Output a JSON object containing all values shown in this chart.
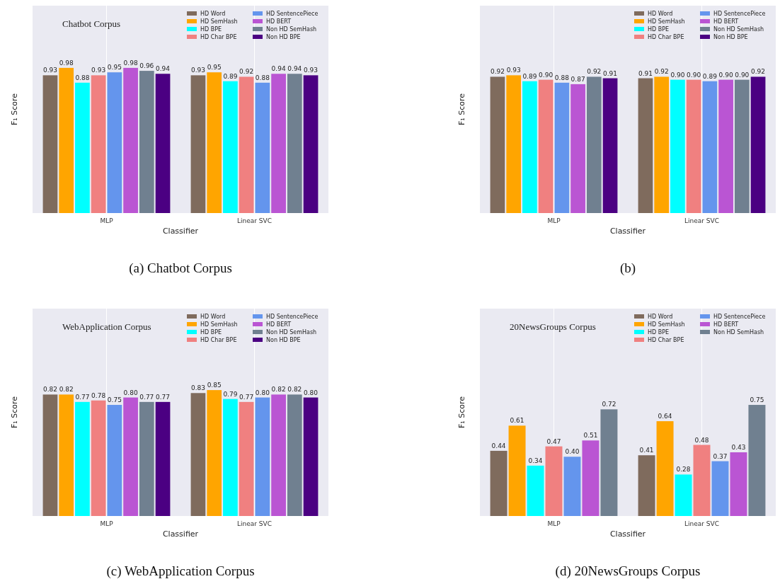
{
  "chart_data": [
    {
      "type": "bar",
      "title": "Chatbot Corpus",
      "xlabel": "Classifier",
      "ylabel": "F₁ Score",
      "categories": [
        "MLP",
        "Linear SVC"
      ],
      "ylim": [
        0,
        1.4
      ],
      "tick_labels": "x",
      "grid": "x",
      "legend": "top right",
      "annotations": [
        "(a)  Chatbot Corpus"
      ],
      "series": [
        {
          "name": "HD Word",
          "color": "#7f6b5d",
          "values": [
            0.93,
            0.93
          ],
          "value_labels": [
            "0.93",
            "0.93"
          ]
        },
        {
          "name": "HD SemHash",
          "color": "#ffa500",
          "values": [
            0.98,
            0.95
          ],
          "value_labels": [
            "0.98",
            "0.95"
          ]
        },
        {
          "name": "HD BPE",
          "color": "#00ffff",
          "values": [
            0.88,
            0.89
          ],
          "value_labels": [
            "0.88",
            "0.89"
          ]
        },
        {
          "name": "HD Char BPE",
          "color": "#f08080",
          "values": [
            0.93,
            0.92
          ],
          "value_labels": [
            "0.93",
            "0.92"
          ]
        },
        {
          "name": "HD SentencePiece",
          "color": "#6495ed",
          "values": [
            0.95,
            0.88
          ],
          "value_labels": [
            "0.95",
            "0.88"
          ]
        },
        {
          "name": "HD BERT",
          "color": "#ba55d3",
          "values": [
            0.98,
            0.94
          ],
          "value_labels": [
            "0.98",
            "0.94"
          ]
        },
        {
          "name": "Non HD SemHash",
          "color": "#708090",
          "values": [
            0.96,
            0.94
          ],
          "value_labels": [
            "0.96",
            "0.94"
          ]
        },
        {
          "name": "Non HD BPE",
          "color": "#4b0082",
          "values": [
            0.94,
            0.93
          ],
          "value_labels": [
            "0.94",
            "0.93"
          ]
        }
      ]
    },
    {
      "type": "bar",
      "xlabel": "Classifier",
      "ylabel": "F₁ Score",
      "categories": [
        "MLP",
        "Linear SVC"
      ],
      "ylim": [
        0,
        1.4
      ],
      "tick_labels": "x",
      "grid": "x",
      "legend": "top right",
      "annotations": [
        "(b)"
      ],
      "series": [
        {
          "name": "HD Word",
          "color": "#7f6b5d",
          "values": [
            0.92,
            0.91
          ],
          "value_labels": [
            "0.92",
            "0.91"
          ]
        },
        {
          "name": "HD SemHash",
          "color": "#ffa500",
          "values": [
            0.93,
            0.92
          ],
          "value_labels": [
            "0.93",
            "0.92"
          ]
        },
        {
          "name": "HD BPE",
          "color": "#00ffff",
          "values": [
            0.89,
            0.9
          ],
          "value_labels": [
            "0.89",
            "0.90"
          ]
        },
        {
          "name": "HD Char BPE",
          "color": "#f08080",
          "values": [
            0.9,
            0.9
          ],
          "value_labels": [
            "0.90",
            "0.90"
          ]
        },
        {
          "name": "HD SentencePiece",
          "color": "#6495ed",
          "values": [
            0.88,
            0.89
          ],
          "value_labels": [
            "0.88",
            "0.89"
          ]
        },
        {
          "name": "HD BERT",
          "color": "#ba55d3",
          "values": [
            0.87,
            0.9
          ],
          "value_labels": [
            "0.87",
            "0.90"
          ]
        },
        {
          "name": "Non HD SemHash",
          "color": "#708090",
          "values": [
            0.92,
            0.9
          ],
          "value_labels": [
            "0.92",
            "0.90"
          ]
        },
        {
          "name": "Non HD BPE",
          "color": "#4b0082",
          "values": [
            0.91,
            0.92
          ],
          "value_labels": [
            "0.91",
            "0.92"
          ]
        }
      ]
    },
    {
      "type": "bar",
      "title": "WebApplication Corpus",
      "xlabel": "Classifier",
      "ylabel": "F₁ Score",
      "categories": [
        "MLP",
        "Linear SVC"
      ],
      "ylim": [
        0,
        1.4
      ],
      "tick_labels": "x",
      "grid": "x",
      "legend": "top right",
      "annotations": [
        "(c)  WebApplication Corpus"
      ],
      "series": [
        {
          "name": "HD Word",
          "color": "#7f6b5d",
          "values": [
            0.82,
            0.83
          ],
          "value_labels": [
            "0.82",
            "0.83"
          ]
        },
        {
          "name": "HD SemHash",
          "color": "#ffa500",
          "values": [
            0.82,
            0.85
          ],
          "value_labels": [
            "0.82",
            "0.85"
          ]
        },
        {
          "name": "HD BPE",
          "color": "#00ffff",
          "values": [
            0.77,
            0.79
          ],
          "value_labels": [
            "0.77",
            "0.79"
          ]
        },
        {
          "name": "HD Char BPE",
          "color": "#f08080",
          "values": [
            0.78,
            0.77
          ],
          "value_labels": [
            "0.78",
            "0.77"
          ]
        },
        {
          "name": "HD SentencePiece",
          "color": "#6495ed",
          "values": [
            0.75,
            0.8
          ],
          "value_labels": [
            "0.75",
            "0.80"
          ]
        },
        {
          "name": "HD BERT",
          "color": "#ba55d3",
          "values": [
            0.8,
            0.82
          ],
          "value_labels": [
            "0.80",
            "0.82"
          ]
        },
        {
          "name": "Non HD SemHash",
          "color": "#708090",
          "values": [
            0.77,
            0.82
          ],
          "value_labels": [
            "0.77",
            "0.82"
          ]
        },
        {
          "name": "Non HD BPE",
          "color": "#4b0082",
          "values": [
            0.77,
            0.8
          ],
          "value_labels": [
            "0.77",
            "0.80"
          ]
        }
      ]
    },
    {
      "type": "bar",
      "title": "20NewsGroups Corpus",
      "xlabel": "Classifier",
      "ylabel": "F₁ Score",
      "categories": [
        "MLP",
        "Linear SVC"
      ],
      "ylim": [
        0,
        1.4
      ],
      "tick_labels": "x",
      "grid": "x",
      "legend": "top right",
      "annotations": [
        "(d)  20NewsGroups Corpus"
      ],
      "series": [
        {
          "name": "HD Word",
          "color": "#7f6b5d",
          "values": [
            0.44,
            0.41
          ],
          "value_labels": [
            "0.44",
            "0.41"
          ]
        },
        {
          "name": "HD SemHash",
          "color": "#ffa500",
          "values": [
            0.61,
            0.64
          ],
          "value_labels": [
            "0.61",
            "0.64"
          ]
        },
        {
          "name": "HD BPE",
          "color": "#00ffff",
          "values": [
            0.34,
            0.28
          ],
          "value_labels": [
            "0.34",
            "0.28"
          ]
        },
        {
          "name": "HD Char BPE",
          "color": "#f08080",
          "values": [
            0.47,
            0.48
          ],
          "value_labels": [
            "0.47",
            "0.48"
          ]
        },
        {
          "name": "HD SentencePiece",
          "color": "#6495ed",
          "values": [
            0.4,
            0.37
          ],
          "value_labels": [
            "0.40",
            "0.37"
          ]
        },
        {
          "name": "HD BERT",
          "color": "#ba55d3",
          "values": [
            0.51,
            0.43
          ],
          "value_labels": [
            "0.51",
            "0.43"
          ]
        },
        {
          "name": "Non HD SemHash",
          "color": "#708090",
          "values": [
            0.72,
            0.75
          ],
          "value_labels": [
            "0.72",
            "0.75"
          ]
        }
      ]
    }
  ]
}
